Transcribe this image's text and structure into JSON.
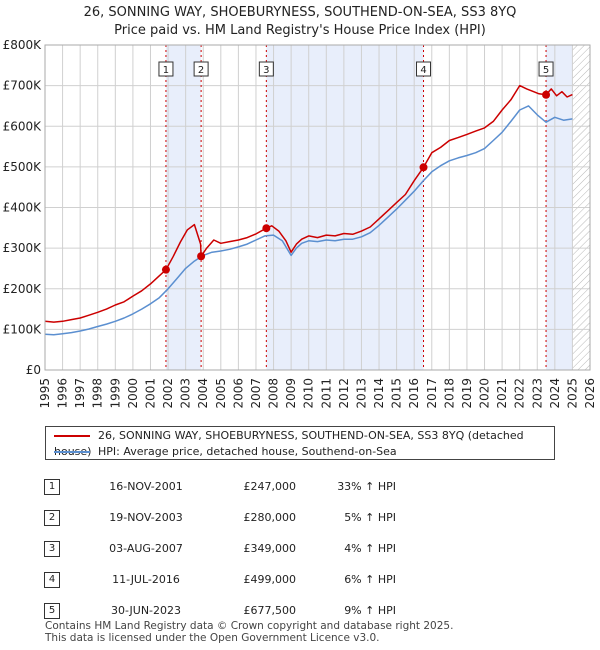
{
  "header": {
    "title": "26, SONNING WAY, SHOEBURYNESS, SOUTHEND-ON-SEA, SS3 8YQ",
    "subtitle": "Price paid vs. HM Land Registry's House Price Index (HPI)"
  },
  "colors": {
    "red": "#cc0000",
    "blue": "#5b8fd0",
    "shade": "#e8eefb",
    "grid": "#d0d0d0"
  },
  "chart_data": {
    "type": "line",
    "title": "26, SONNING WAY, SHOEBURYNESS, SOUTHEND-ON-SEA, SS3 8YQ",
    "xlim": [
      1995,
      2026
    ],
    "ylim": [
      0,
      800000
    ],
    "x_ticks": [
      "1995",
      "1996",
      "1997",
      "1998",
      "1999",
      "2000",
      "2001",
      "2002",
      "2003",
      "2004",
      "2005",
      "2006",
      "2007",
      "2008",
      "2009",
      "2010",
      "2011",
      "2012",
      "2013",
      "2014",
      "2015",
      "2016",
      "2017",
      "2018",
      "2019",
      "2020",
      "2021",
      "2022",
      "2023",
      "2024",
      "2025",
      "2026"
    ],
    "y_ticks": [
      {
        "value": 0,
        "label": "£0"
      },
      {
        "value": 100000,
        "label": "£100K"
      },
      {
        "value": 200000,
        "label": "£200K"
      },
      {
        "value": 300000,
        "label": "£300K"
      },
      {
        "value": 400000,
        "label": "£400K"
      },
      {
        "value": 500000,
        "label": "£500K"
      },
      {
        "value": 600000,
        "label": "£600K"
      },
      {
        "value": 700000,
        "label": "£700K"
      },
      {
        "value": 800000,
        "label": "£800K"
      }
    ],
    "shaded_ranges": [
      [
        2001.88,
        2003.88
      ],
      [
        2007.59,
        2016.53
      ],
      [
        2023.5,
        2025.0
      ]
    ],
    "future_hatch_start": 2025.0,
    "series": [
      {
        "name": "26, SONNING WAY, SHOEBURYNESS, SOUTHEND-ON-SEA, SS3 8YQ (detached house)",
        "color": "#cc0000",
        "x": [
          1995,
          1995.5,
          1996,
          1996.5,
          1997,
          1997.5,
          1998,
          1998.5,
          1999,
          1999.5,
          2000,
          2000.5,
          2001,
          2001.5,
          2001.88,
          2002.3,
          2002.7,
          2003.1,
          2003.5,
          2003.85,
          2003.88,
          2004.2,
          2004.6,
          2005,
          2005.5,
          2006,
          2006.5,
          2007,
          2007.59,
          2007.9,
          2008.3,
          2008.7,
          2009,
          2009.3,
          2009.6,
          2010,
          2010.5,
          2011,
          2011.5,
          2012,
          2012.5,
          2013,
          2013.5,
          2014,
          2014.5,
          2015,
          2015.5,
          2016,
          2016.53,
          2017,
          2017.5,
          2018,
          2018.5,
          2019,
          2019.5,
          2020,
          2020.5,
          2021,
          2021.5,
          2022,
          2022.4,
          2022.8,
          2023.1,
          2023.5,
          2023.8,
          2024.1,
          2024.4,
          2024.7,
          2025
        ],
        "y": [
          120000,
          118000,
          120000,
          124000,
          128000,
          135000,
          142000,
          150000,
          160000,
          168000,
          182000,
          195000,
          212000,
          232000,
          247000,
          280000,
          315000,
          345000,
          358000,
          310000,
          280000,
          300000,
          320000,
          312000,
          316000,
          320000,
          326000,
          335000,
          349000,
          355000,
          342000,
          318000,
          290000,
          310000,
          322000,
          330000,
          326000,
          332000,
          330000,
          336000,
          334000,
          342000,
          352000,
          372000,
          392000,
          412000,
          432000,
          466000,
          499000,
          535000,
          548000,
          565000,
          572000,
          580000,
          588000,
          596000,
          612000,
          640000,
          665000,
          700000,
          692000,
          685000,
          680000,
          677500,
          692000,
          675000,
          685000,
          672000,
          678000
        ]
      },
      {
        "name": "HPI: Average price, detached house, Southend-on-Sea",
        "color": "#5b8fd0",
        "x": [
          1995,
          1995.5,
          1996,
          1996.5,
          1997,
          1997.5,
          1998,
          1998.5,
          1999,
          1999.5,
          2000,
          2000.5,
          2001,
          2001.5,
          2002,
          2002.5,
          2003,
          2003.5,
          2004,
          2004.5,
          2005,
          2005.5,
          2006,
          2006.5,
          2007,
          2007.5,
          2008,
          2008.5,
          2009,
          2009.3,
          2009.6,
          2010,
          2010.5,
          2011,
          2011.5,
          2012,
          2012.5,
          2013,
          2013.5,
          2014,
          2014.5,
          2015,
          2015.5,
          2016,
          2016.5,
          2017,
          2017.5,
          2018,
          2018.5,
          2019,
          2019.5,
          2020,
          2020.5,
          2021,
          2021.5,
          2022,
          2022.5,
          2023,
          2023.5,
          2024,
          2024.5,
          2025
        ],
        "y": [
          88000,
          87000,
          89000,
          92000,
          96000,
          101000,
          107000,
          113000,
          120000,
          128000,
          138000,
          150000,
          163000,
          178000,
          200000,
          225000,
          250000,
          268000,
          282000,
          290000,
          293000,
          297000,
          303000,
          310000,
          320000,
          330000,
          332000,
          318000,
          282000,
          300000,
          312000,
          318000,
          316000,
          320000,
          318000,
          322000,
          322000,
          328000,
          338000,
          356000,
          376000,
          396000,
          418000,
          440000,
          465000,
          488000,
          503000,
          515000,
          522000,
          528000,
          535000,
          545000,
          565000,
          585000,
          612000,
          640000,
          650000,
          628000,
          610000,
          622000,
          615000,
          618000
        ]
      }
    ],
    "sales": [
      {
        "num": "1",
        "date": "16-NOV-2001",
        "price": "£247,000",
        "hpi": "33% ↑ HPI",
        "x": 2001.88,
        "y": 247000
      },
      {
        "num": "2",
        "date": "19-NOV-2003",
        "price": "£280,000",
        "hpi": "5% ↑ HPI",
        "x": 2003.88,
        "y": 280000
      },
      {
        "num": "3",
        "date": "03-AUG-2007",
        "price": "£349,000",
        "hpi": "4% ↑ HPI",
        "x": 2007.59,
        "y": 349000
      },
      {
        "num": "4",
        "date": "11-JUL-2016",
        "price": "£499,000",
        "hpi": "6% ↑ HPI",
        "x": 2016.53,
        "y": 499000
      },
      {
        "num": "5",
        "date": "30-JUN-2023",
        "price": "£677,500",
        "hpi": "9% ↑ HPI",
        "x": 2023.5,
        "y": 677500
      }
    ]
  },
  "legend": {
    "red": "26, SONNING WAY, SHOEBURYNESS, SOUTHEND-ON-SEA, SS3 8YQ (detached house)",
    "blue": "HPI: Average price, detached house, Southend-on-Sea"
  },
  "footer": {
    "line1": "Contains HM Land Registry data © Crown copyright and database right 2025.",
    "line2": "This data is licensed under the Open Government Licence v3.0."
  }
}
